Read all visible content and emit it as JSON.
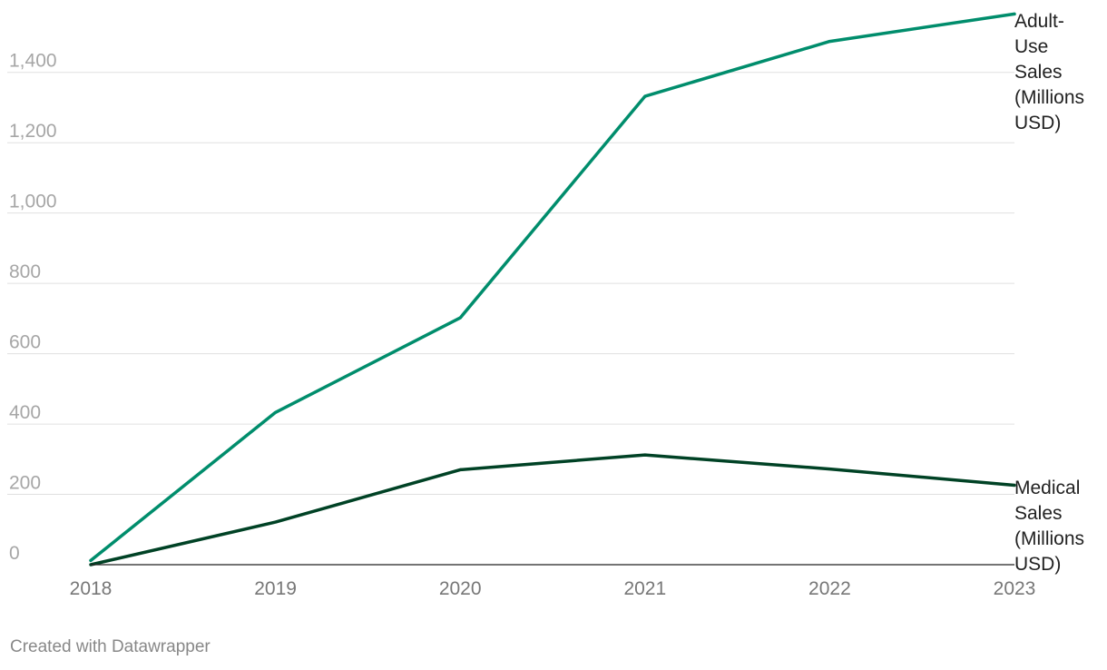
{
  "chart_data": {
    "type": "line",
    "x": [
      2018,
      2019,
      2020,
      2021,
      2022,
      2023
    ],
    "x_tick_labels": [
      "2018",
      "2019",
      "2020",
      "2021",
      "2022",
      "2023"
    ],
    "ylim": [
      0,
      1580
    ],
    "y_ticks": [
      0,
      200,
      400,
      600,
      800,
      1000,
      1200,
      1400
    ],
    "y_tick_labels": [
      "0",
      "200",
      "400",
      "600",
      "800",
      "1,000",
      "1,200",
      "1,400"
    ],
    "grid": true,
    "series": [
      {
        "name": "Adult-Use Sales (Millions USD)",
        "label_lines": [
          "Adult-",
          "Use",
          "Sales",
          "(Millions",
          "USD)"
        ],
        "color": "#008d6c",
        "values": [
          12,
          433,
          702,
          1332,
          1488,
          1566
        ]
      },
      {
        "name": "Medical Sales (Millions USD)",
        "label_lines": [
          "Medical",
          "Sales",
          "(Millions",
          "USD)"
        ],
        "color": "#004225",
        "values": [
          0,
          121,
          270,
          312,
          272,
          226
        ]
      }
    ]
  },
  "footer": {
    "credit": "Created with Datawrapper"
  }
}
